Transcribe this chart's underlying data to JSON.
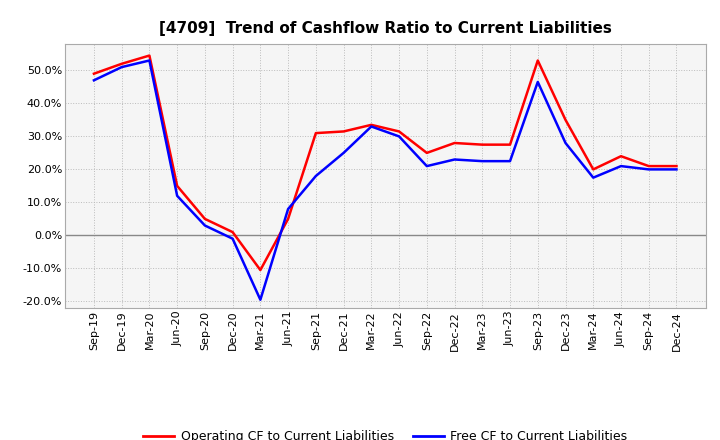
{
  "title": "[4709]  Trend of Cashflow Ratio to Current Liabilities",
  "labels": [
    "Sep-19",
    "Dec-19",
    "Mar-20",
    "Jun-20",
    "Sep-20",
    "Dec-20",
    "Mar-21",
    "Jun-21",
    "Sep-21",
    "Dec-21",
    "Mar-22",
    "Jun-22",
    "Sep-22",
    "Dec-22",
    "Mar-23",
    "Jun-23",
    "Sep-23",
    "Dec-23",
    "Mar-24",
    "Jun-24",
    "Sep-24",
    "Dec-24"
  ],
  "operating_cf": [
    49.0,
    52.0,
    54.5,
    15.0,
    5.0,
    1.0,
    -10.5,
    5.0,
    31.0,
    31.5,
    33.5,
    31.5,
    25.0,
    28.0,
    27.5,
    27.5,
    53.0,
    35.0,
    20.0,
    24.0,
    21.0,
    21.0
  ],
  "free_cf": [
    47.0,
    51.0,
    53.0,
    12.0,
    3.0,
    -1.0,
    -19.5,
    8.0,
    18.0,
    25.0,
    33.0,
    30.0,
    21.0,
    23.0,
    22.5,
    22.5,
    46.5,
    28.0,
    17.5,
    21.0,
    20.0,
    20.0
  ],
  "operating_cf_color": "#ff0000",
  "free_cf_color": "#0000ff",
  "ylim": [
    -22.0,
    58.0
  ],
  "yticks": [
    -20.0,
    -10.0,
    0.0,
    10.0,
    20.0,
    30.0,
    40.0,
    50.0
  ],
  "background_color": "#ffffff",
  "plot_bg_color": "#f5f5f5",
  "grid_color": "#bbbbbb",
  "title_fontsize": 11,
  "legend_fontsize": 9,
  "tick_fontsize": 8
}
